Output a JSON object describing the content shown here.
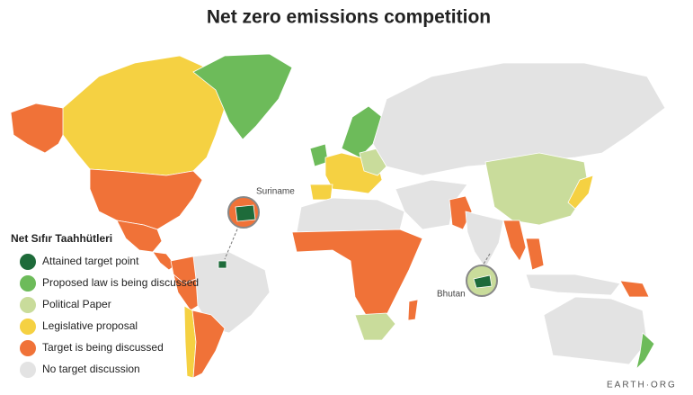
{
  "header": {
    "title": "Net zero emissions competition"
  },
  "legend": {
    "title": "Net Sıfır Taahhütleri",
    "items": [
      {
        "name": "Attained target point",
        "color": "#1e6b3a"
      },
      {
        "name": "Proposed law is being discussed",
        "color": "#6dbb5a"
      },
      {
        "name": "Political Paper",
        "color": "#c9dc9b"
      },
      {
        "name": "Legislative proposal",
        "color": "#f5d142"
      },
      {
        "name": "Target is being discussed",
        "color": "#f07238"
      },
      {
        "name": "No target discussion",
        "color": "#e3e3e3"
      }
    ]
  },
  "annotations": {
    "suriname": "Suriname",
    "bhutan": "Bhutan",
    "brand": "EARTH·ORG"
  }
}
